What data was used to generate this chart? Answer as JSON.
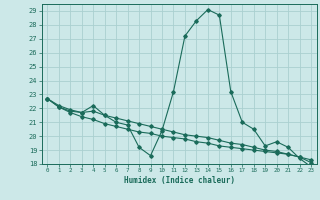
{
  "title": "",
  "xlabel": "Humidex (Indice chaleur)",
  "bg_color": "#cce8e8",
  "grid_color": "#aad0d0",
  "line_color": "#1a6b5a",
  "xlim": [
    -0.5,
    23.5
  ],
  "ylim": [
    18,
    29.5
  ],
  "xticks": [
    0,
    1,
    2,
    3,
    4,
    5,
    6,
    7,
    8,
    9,
    10,
    11,
    12,
    13,
    14,
    15,
    16,
    17,
    18,
    19,
    20,
    21,
    22,
    23
  ],
  "yticks": [
    18,
    19,
    20,
    21,
    22,
    23,
    24,
    25,
    26,
    27,
    28,
    29
  ],
  "line1_x": [
    0,
    1,
    2,
    3,
    4,
    5,
    6,
    7,
    8,
    9,
    10,
    11,
    12,
    13,
    14,
    15,
    16,
    17,
    18,
    19,
    20,
    21,
    22,
    23
  ],
  "line1_y": [
    22.7,
    22.1,
    21.8,
    21.7,
    22.2,
    21.5,
    21.0,
    20.8,
    19.2,
    18.6,
    20.4,
    23.2,
    27.2,
    28.3,
    29.1,
    28.7,
    23.2,
    21.0,
    20.5,
    19.3,
    19.6,
    19.2,
    18.4,
    17.8
  ],
  "line2_x": [
    0,
    1,
    2,
    3,
    4,
    5,
    6,
    7,
    8,
    9,
    10,
    11,
    12,
    13,
    14,
    15,
    16,
    17,
    18,
    19,
    20,
    21,
    22,
    23
  ],
  "line2_y": [
    22.7,
    22.2,
    21.9,
    21.7,
    21.8,
    21.5,
    21.3,
    21.1,
    20.9,
    20.7,
    20.5,
    20.3,
    20.1,
    20.0,
    19.9,
    19.7,
    19.5,
    19.4,
    19.2,
    19.0,
    18.9,
    18.7,
    18.5,
    18.1
  ],
  "line3_x": [
    0,
    1,
    2,
    3,
    4,
    5,
    6,
    7,
    8,
    9,
    10,
    11,
    12,
    13,
    14,
    15,
    16,
    17,
    18,
    19,
    20,
    21,
    22,
    23
  ],
  "line3_y": [
    22.7,
    22.1,
    21.7,
    21.4,
    21.2,
    20.9,
    20.7,
    20.5,
    20.3,
    20.2,
    20.0,
    19.9,
    19.8,
    19.6,
    19.5,
    19.3,
    19.2,
    19.1,
    19.0,
    18.9,
    18.8,
    18.7,
    18.5,
    18.3
  ]
}
